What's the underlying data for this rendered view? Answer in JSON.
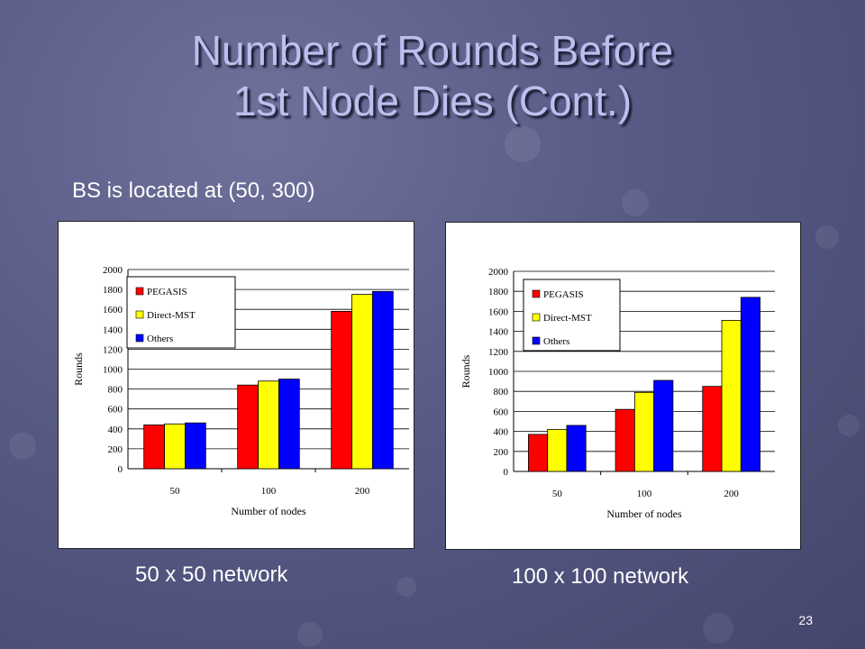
{
  "slide": {
    "title_line1": "Number of Rounds Before",
    "title_line2": "1st Node Dies (Cont.)",
    "subtitle": "BS is located at (50, 300)",
    "caption_left": "50 x 50 network",
    "caption_right": "100 x 100 network",
    "page_number": "23"
  },
  "colors": {
    "PEGASIS": "#ff0000",
    "Direct-MST": "#ffff00",
    "Others": "#0000ff"
  },
  "chart_data": [
    {
      "type": "bar",
      "categories": [
        "50",
        "100",
        "200"
      ],
      "series": [
        {
          "name": "PEGASIS",
          "values": [
            440,
            840,
            1580
          ]
        },
        {
          "name": "Direct-MST",
          "values": [
            450,
            880,
            1750
          ]
        },
        {
          "name": "Others",
          "values": [
            460,
            900,
            1780
          ]
        }
      ],
      "xlabel": "Number of nodes",
      "ylabel": "Rounds",
      "ylim": [
        0,
        2000
      ],
      "yticks": [
        0,
        200,
        400,
        600,
        800,
        1000,
        1200,
        1400,
        1600,
        1800,
        2000
      ],
      "grid": true,
      "legend": "top-left"
    },
    {
      "type": "bar",
      "categories": [
        "50",
        "100",
        "200"
      ],
      "series": [
        {
          "name": "PEGASIS",
          "values": [
            370,
            620,
            850
          ]
        },
        {
          "name": "Direct-MST",
          "values": [
            420,
            790,
            1510
          ]
        },
        {
          "name": "Others",
          "values": [
            460,
            910,
            1740
          ]
        }
      ],
      "xlabel": "Number of nodes",
      "ylabel": "Rounds",
      "ylim": [
        0,
        2000
      ],
      "yticks": [
        0,
        200,
        400,
        600,
        800,
        1000,
        1200,
        1400,
        1600,
        1800,
        2000
      ],
      "grid": true,
      "legend": "top-left"
    }
  ]
}
